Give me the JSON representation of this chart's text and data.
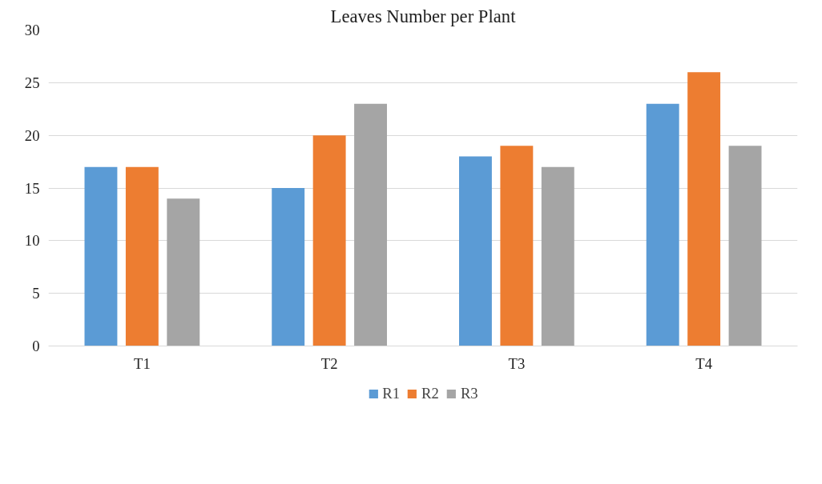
{
  "chart_data": {
    "type": "bar",
    "title": "Leaves Number per Plant",
    "categories": [
      "T1",
      "T2",
      "T3",
      "T4"
    ],
    "series": [
      {
        "name": "R1",
        "color": "#5b9bd5",
        "values": [
          17,
          15,
          18,
          23
        ]
      },
      {
        "name": "R2",
        "color": "#ed7d31",
        "values": [
          17,
          20,
          19,
          26
        ]
      },
      {
        "name": "R3",
        "color": "#a5a5a5",
        "values": [
          14,
          23,
          17,
          19
        ]
      }
    ],
    "ylim": [
      0,
      30
    ],
    "yticks": [
      0,
      5,
      10,
      15,
      20,
      25,
      30
    ],
    "grid": "y",
    "legend": "bottom"
  }
}
